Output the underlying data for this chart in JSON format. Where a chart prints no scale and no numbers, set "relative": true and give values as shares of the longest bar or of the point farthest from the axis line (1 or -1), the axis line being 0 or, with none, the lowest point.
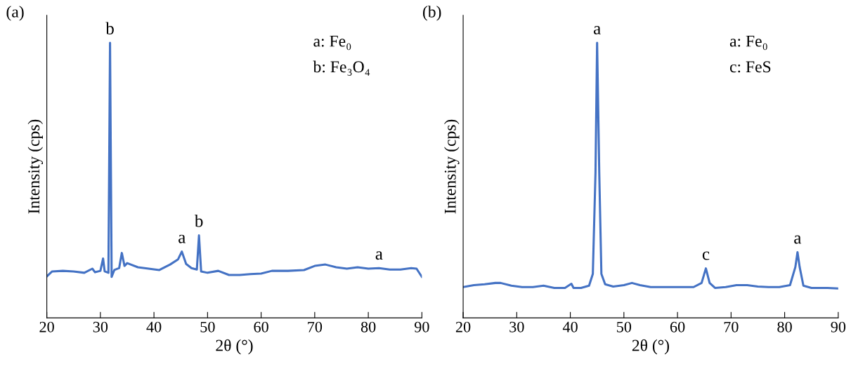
{
  "chart_data": [
    {
      "type": "line",
      "title": "(a)",
      "xlabel": "2θ (°)",
      "ylabel": "Intensity (cps)",
      "relative": true,
      "tick_labels": "x",
      "grid": false,
      "legend": false,
      "xlim": [
        20,
        90
      ],
      "xticks": [
        20,
        30,
        40,
        50,
        60,
        70,
        80,
        90
      ],
      "series": [
        {
          "color": "#4472c4",
          "x": [
            20,
            21,
            23,
            25,
            27,
            28.5,
            29,
            30,
            30.5,
            30.8,
            31.5,
            31.8,
            32.1,
            32.6,
            33.5,
            34,
            34.5,
            35,
            37,
            39,
            41,
            43,
            44.5,
            45.2,
            46,
            47,
            48,
            48.4,
            48.8,
            50,
            52,
            54,
            56,
            58,
            60,
            62,
            65,
            68,
            70,
            72,
            74,
            76,
            78,
            80,
            82,
            84,
            86,
            88,
            89,
            90
          ],
          "values": [
            0.151,
            0.169,
            0.171,
            0.169,
            0.164,
            0.179,
            0.166,
            0.171,
            0.216,
            0.169,
            0.164,
            1.0,
            0.149,
            0.174,
            0.181,
            0.236,
            0.189,
            0.199,
            0.184,
            0.179,
            0.174,
            0.194,
            0.213,
            0.241,
            0.196,
            0.181,
            0.176,
            0.3,
            0.169,
            0.164,
            0.171,
            0.156,
            0.156,
            0.159,
            0.161,
            0.171,
            0.171,
            0.174,
            0.189,
            0.194,
            0.184,
            0.179,
            0.184,
            0.179,
            0.181,
            0.176,
            0.176,
            0.181,
            0.179,
            0.149
          ]
        }
      ],
      "annotations": [
        "a: Fe₀",
        "b: Fe₃O₄",
        {
          "text": "b",
          "x": 31.8,
          "y": 1.0
        },
        {
          "text": "a",
          "x": 45.2,
          "y": 0.241
        },
        {
          "text": "b",
          "x": 48.4,
          "y": 0.3
        },
        {
          "text": "a",
          "x": 82,
          "y": 0.181
        }
      ]
    },
    {
      "type": "line",
      "title": "(b)",
      "xlabel": "2θ (°)",
      "ylabel": "Intensity (cps)",
      "relative": true,
      "tick_labels": "x",
      "grid": false,
      "legend": false,
      "xlim": [
        20,
        90
      ],
      "xticks": [
        20,
        30,
        40,
        50,
        60,
        70,
        80,
        90
      ],
      "series": [
        {
          "color": "#4472c4",
          "x": [
            20,
            22,
            24,
            26,
            27,
            29,
            31,
            33,
            35,
            37,
            39,
            40.2,
            40.6,
            42,
            43.5,
            44.2,
            44.7,
            45.0,
            45.4,
            45.8,
            46.5,
            48,
            50,
            51.5,
            53,
            55,
            57,
            59,
            61,
            63,
            64.5,
            65.3,
            66,
            67,
            69,
            71,
            73,
            75,
            77,
            79,
            81,
            82,
            82.4,
            82.8,
            83.5,
            85,
            88,
            90
          ],
          "values": [
            0.112,
            0.119,
            0.122,
            0.127,
            0.127,
            0.117,
            0.112,
            0.112,
            0.117,
            0.109,
            0.109,
            0.124,
            0.109,
            0.109,
            0.117,
            0.16,
            0.528,
            1.0,
            0.528,
            0.16,
            0.122,
            0.114,
            0.119,
            0.127,
            0.119,
            0.112,
            0.112,
            0.112,
            0.112,
            0.112,
            0.127,
            0.18,
            0.127,
            0.109,
            0.112,
            0.119,
            0.119,
            0.114,
            0.112,
            0.112,
            0.119,
            0.185,
            0.239,
            0.185,
            0.117,
            0.109,
            0.109,
            0.107
          ]
        }
      ],
      "annotations": [
        "a: Fe₀",
        "c: FeS",
        {
          "text": "a",
          "x": 45.0,
          "y": 1.0
        },
        {
          "text": "c",
          "x": 65.3,
          "y": 0.18
        },
        {
          "text": "a",
          "x": 82.4,
          "y": 0.239
        }
      ]
    }
  ]
}
